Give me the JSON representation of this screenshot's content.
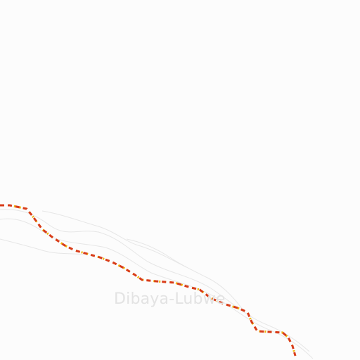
{
  "map": {
    "background_color": "#fcfcfc",
    "boundary_color_main": "#d83c1a",
    "boundary_color_accent": "#f0b400",
    "water_color": "#e6e6e6",
    "label_color": "#e3e3e3"
  },
  "labels": {
    "place": "Dibaya-Lubwe"
  }
}
